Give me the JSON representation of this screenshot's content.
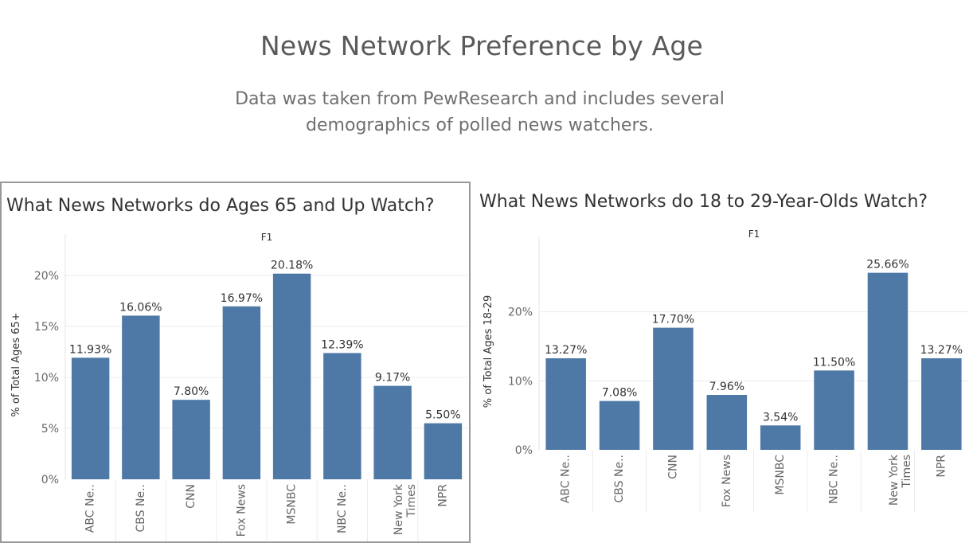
{
  "dashboard": {
    "title": "News Network Preference by Age",
    "subtitle": "Data was taken from PewResearch and includes several demographics of polled news watchers."
  },
  "colors": {
    "bar": "#4e79a7",
    "gridline": "#ececec",
    "panel_border": "#999999"
  },
  "chart_data": [
    {
      "type": "bar",
      "title": "What News Networks do Ages 65 and Up Watch?",
      "pane_label": "F1",
      "ylabel": "% of Total Ages 65+",
      "categories": [
        "ABC Ne..",
        "CBS Ne..",
        "CNN",
        "Fox News",
        "MSNBC",
        "NBC Ne..",
        "New York Times",
        "NPR"
      ],
      "category_lines": [
        [
          "ABC Ne.."
        ],
        [
          "CBS Ne.."
        ],
        [
          "CNN"
        ],
        [
          "Fox News"
        ],
        [
          "MSNBC"
        ],
        [
          "NBC Ne.."
        ],
        [
          "New York",
          "Times"
        ],
        [
          "NPR"
        ]
      ],
      "values": [
        11.93,
        16.06,
        7.8,
        16.97,
        20.18,
        12.39,
        9.17,
        5.5
      ],
      "value_labels": [
        "11.93%",
        "16.06%",
        "7.80%",
        "16.97%",
        "20.18%",
        "12.39%",
        "9.17%",
        "5.50%"
      ],
      "yticks": [
        0,
        5,
        10,
        15,
        20
      ],
      "ytick_labels": [
        "0%",
        "5%",
        "10%",
        "15%",
        "20%"
      ],
      "ylim": [
        0,
        22.5
      ],
      "grid": true
    },
    {
      "type": "bar",
      "title": "What News Networks do 18 to 29-Year-Olds Watch?",
      "pane_label": "F1",
      "ylabel": "% of Total Ages 18-29",
      "categories": [
        "ABC Ne..",
        "CBS Ne..",
        "CNN",
        "Fox News",
        "MSNBC",
        "NBC Ne..",
        "New York Times",
        "NPR"
      ],
      "category_lines": [
        [
          "ABC Ne.."
        ],
        [
          "CBS Ne.."
        ],
        [
          "CNN"
        ],
        [
          "Fox News"
        ],
        [
          "MSNBC"
        ],
        [
          "NBC Ne.."
        ],
        [
          "New York",
          "Times"
        ],
        [
          "NPR"
        ]
      ],
      "values": [
        13.27,
        7.08,
        17.7,
        7.96,
        3.54,
        11.5,
        25.66,
        13.27
      ],
      "value_labels": [
        "13.27%",
        "7.08%",
        "17.70%",
        "7.96%",
        "3.54%",
        "11.50%",
        "25.66%",
        "13.27%"
      ],
      "yticks": [
        0,
        10,
        20
      ],
      "ytick_labels": [
        "0%",
        "10%",
        "20%"
      ],
      "ylim": [
        0,
        28.5
      ],
      "grid": true
    }
  ]
}
